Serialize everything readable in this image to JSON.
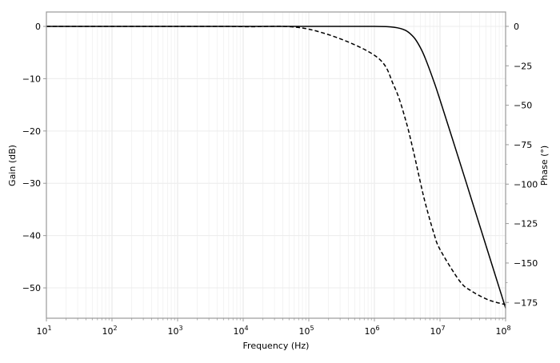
{
  "chart_data": {
    "type": "line",
    "title": "",
    "xlabel": "Frequency (Hz)",
    "ylabel": "Gain (dB)",
    "ylabel_right": "Phase ($^\\circ$)",
    "ylabel_right_display": "Phase (°)",
    "xscale": "log",
    "xlim": [
      10,
      100000000
    ],
    "ylim": [
      -55.8,
      2.75
    ],
    "ylim_right": [
      -185,
      9.1
    ],
    "x_ticks": [
      {
        "value": 10,
        "base": "10",
        "exp": "1"
      },
      {
        "value": 100,
        "base": "10",
        "exp": "2"
      },
      {
        "value": 1000,
        "base": "10",
        "exp": "3"
      },
      {
        "value": 10000,
        "base": "10",
        "exp": "4"
      },
      {
        "value": 100000,
        "base": "10",
        "exp": "5"
      },
      {
        "value": 1000000,
        "base": "10",
        "exp": "6"
      },
      {
        "value": 10000000,
        "base": "10",
        "exp": "7"
      },
      {
        "value": 100000000,
        "base": "10",
        "exp": "8"
      }
    ],
    "y_ticks": [
      "0",
      "−10",
      "−20",
      "−30",
      "−40",
      "−50"
    ],
    "y_tick_values": [
      0,
      -10,
      -20,
      -30,
      -40,
      -50
    ],
    "y_right_ticks": [
      "0",
      "−25",
      "−50",
      "−75",
      "−100",
      "−125",
      "−150",
      "−175"
    ],
    "y_right_tick_values": [
      0,
      -25,
      -50,
      -75,
      -100,
      -125,
      -150,
      -175
    ],
    "grid": "major and minor, light gray",
    "x": [
      10,
      100,
      1000,
      10000,
      100000,
      1000000,
      2000000,
      3000000,
      4000000,
      5000000,
      6000000,
      8000000,
      10000000,
      20000000,
      30000000,
      50000000,
      70000000,
      100000000
    ],
    "series": [
      {
        "axis": "left",
        "style": "solid",
        "color": "#000000",
        "values": [
          0,
          0,
          0,
          0,
          0,
          -0.01,
          -0.17,
          -0.78,
          -2.11,
          -4.02,
          -6.19,
          -10.41,
          -14.05,
          -25.92,
          -32.96,
          -41.83,
          -47.68,
          -53.87
        ]
      },
      {
        "axis": "right",
        "style": "dashed",
        "color": "#000000",
        "values": [
          -0.0002,
          -0.002,
          -0.018,
          -0.18,
          -1.8,
          -18.3,
          -38.0,
          -59.5,
          -80.5,
          -98.5,
          -112.4,
          -130.7,
          -141.4,
          -161.5,
          -167.7,
          -172.7,
          -174.8,
          -176.35
        ]
      }
    ]
  }
}
